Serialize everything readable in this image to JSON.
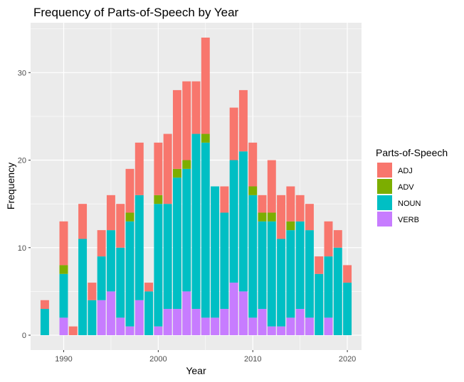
{
  "chart_data": {
    "type": "bar",
    "stacked": true,
    "title": "Frequency of Parts-of-Speech by Year",
    "xlabel": "Year",
    "ylabel": "Frequency",
    "xlim": [
      1986.5,
      2021.5
    ],
    "ylim": [
      -1.7,
      35.7
    ],
    "x_ticks": [
      1990,
      2000,
      2010,
      2020
    ],
    "y_ticks": [
      0,
      10,
      20,
      30
    ],
    "grid": true,
    "legend": {
      "title": "Parts-of-Speech",
      "position": "right"
    },
    "colors": {
      "ADJ": "#F8766D",
      "ADV": "#7CAE00",
      "NOUN": "#00BFC4",
      "VERB": "#C77CFF"
    },
    "x": [
      1988,
      1990,
      1991,
      1992,
      1993,
      1994,
      1995,
      1996,
      1997,
      1998,
      1999,
      2000,
      2001,
      2002,
      2003,
      2004,
      2005,
      2006,
      2007,
      2008,
      2009,
      2010,
      2011,
      2012,
      2013,
      2014,
      2015,
      2016,
      2017,
      2018,
      2019,
      2020
    ],
    "series": [
      {
        "name": "VERB",
        "values": [
          0,
          2,
          0,
          0,
          0,
          4,
          5,
          2,
          1,
          4,
          0,
          1,
          3,
          3,
          5,
          3,
          2,
          2,
          3,
          6,
          5,
          2,
          3,
          1,
          1,
          2,
          3,
          2,
          0,
          2,
          0,
          0
        ]
      },
      {
        "name": "NOUN",
        "values": [
          3,
          5,
          0,
          11,
          4,
          5,
          7,
          8,
          12,
          12,
          5,
          14,
          12,
          15,
          14,
          20,
          20,
          15,
          11,
          14,
          16,
          14,
          10,
          12,
          10,
          10,
          10,
          10,
          7,
          7,
          10,
          6
        ]
      },
      {
        "name": "ADV",
        "values": [
          0,
          1,
          0,
          0,
          0,
          0,
          0,
          0,
          1,
          0,
          0,
          1,
          0,
          1,
          1,
          0,
          1,
          0,
          0,
          0,
          0,
          1,
          1,
          1,
          0,
          1,
          0,
          0,
          0,
          0,
          0,
          0
        ]
      },
      {
        "name": "ADJ",
        "values": [
          1,
          5,
          1,
          4,
          2,
          3,
          4,
          5,
          5,
          6,
          1,
          6,
          8,
          9,
          9,
          6,
          11,
          0,
          3,
          6,
          7,
          5,
          2,
          6,
          5,
          4,
          3,
          3,
          2,
          4,
          2,
          2
        ]
      }
    ]
  }
}
